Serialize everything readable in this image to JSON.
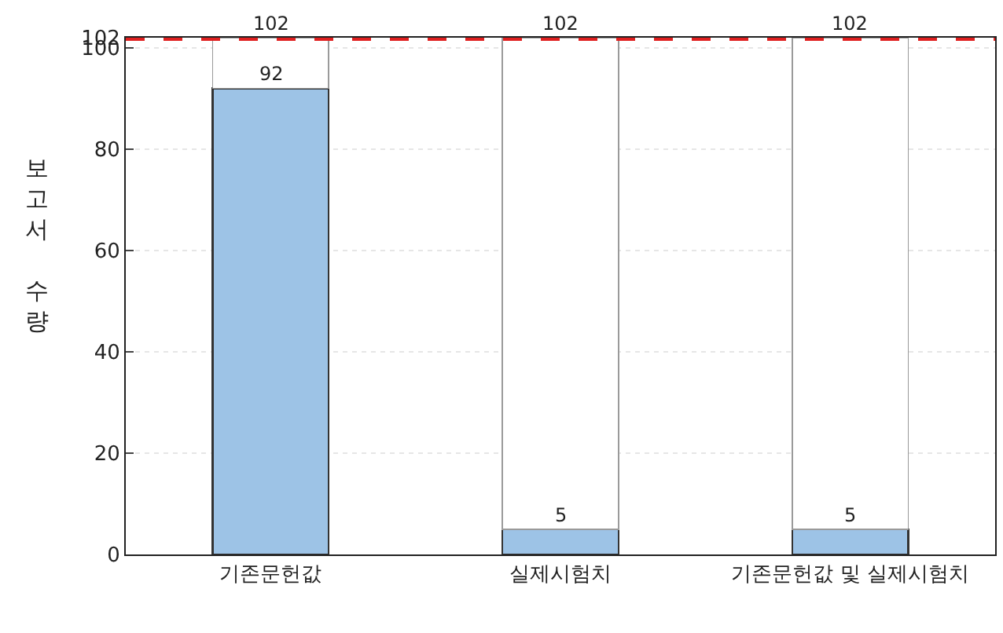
{
  "chart_data": {
    "type": "bar",
    "ylabel": "보고서 수량",
    "categories": [
      "기존문헌값",
      "실제시험치",
      "기존문헌값 및 실제시험치"
    ],
    "stacked": true,
    "series": [
      {
        "color": "#9dc3e6",
        "values": [
          92,
          5,
          5
        ],
        "value_labels": [
          "92",
          "5",
          "5"
        ]
      },
      {
        "color": "#ffffff",
        "values": [
          10,
          97,
          97
        ],
        "line_style": "dotted"
      }
    ],
    "totals": [
      "102",
      "102",
      "102"
    ],
    "ylim": [
      0,
      102
    ],
    "yticks": [
      0,
      20,
      40,
      60,
      80,
      100,
      {
        "value": 102,
        "label": "102"
      }
    ],
    "grid": "y",
    "legend": false,
    "ref_lines": [
      {
        "axis": "y",
        "value": 102,
        "color": "#e02020",
        "line_style": "dashed"
      }
    ]
  }
}
